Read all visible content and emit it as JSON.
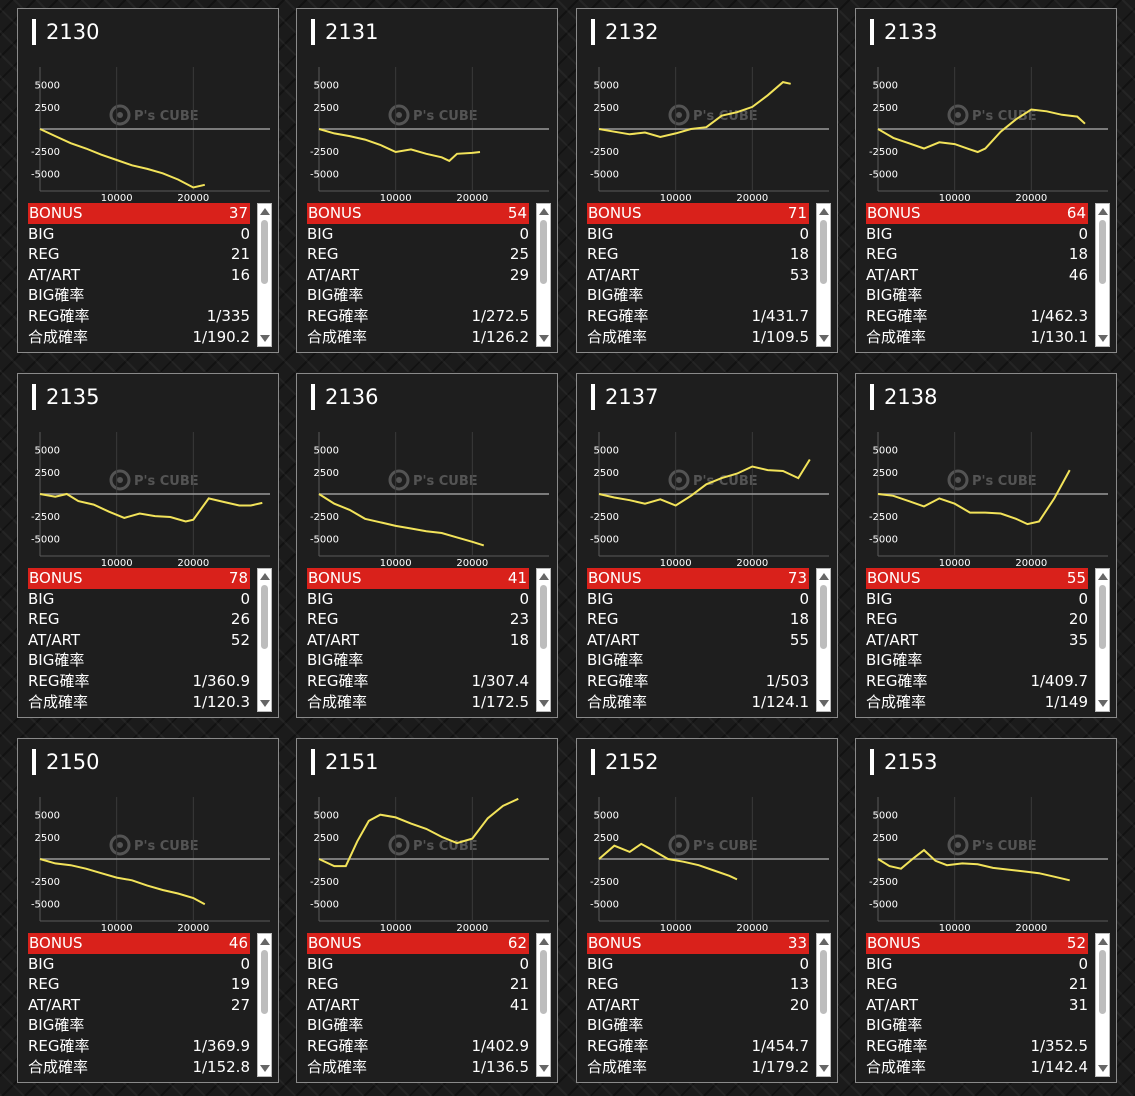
{
  "labels": {
    "bonus": "BONUS",
    "big": "BIG",
    "reg": "REG",
    "atart": "AT/ART",
    "big_rate": "BIG確率",
    "reg_rate": "REG確率",
    "combined_rate": "合成確率"
  },
  "chart_axis": {
    "y_ticks": [
      "5000",
      "2500",
      "-2500",
      "-5000"
    ],
    "x_ticks": [
      "10000",
      "20000"
    ],
    "watermark": "P's CUBE"
  },
  "colors": {
    "bonus_bar": "#d9211b",
    "line": "#f2e35a",
    "zero_line": "#9a9a9a"
  },
  "machines": [
    {
      "id": "2130",
      "bonus": "37",
      "big": "0",
      "reg": "21",
      "atart": "16",
      "big_rate": "",
      "reg_rate": "1/335",
      "combined_rate": "1/190.2",
      "chart_data": {
        "type": "line",
        "x": [
          0,
          2000,
          4000,
          6000,
          8000,
          10000,
          12000,
          14000,
          16000,
          18000,
          20000,
          21500
        ],
        "y": [
          0,
          -800,
          -1600,
          -2200,
          -2900,
          -3500,
          -4100,
          -4500,
          -5000,
          -5700,
          -6600,
          -6300
        ],
        "xlim": [
          0,
          30000
        ],
        "ylim": [
          -7000,
          7000
        ]
      }
    },
    {
      "id": "2131",
      "bonus": "54",
      "big": "0",
      "reg": "25",
      "atart": "29",
      "big_rate": "",
      "reg_rate": "1/272.5",
      "combined_rate": "1/126.2",
      "chart_data": {
        "type": "line",
        "x": [
          0,
          2000,
          4000,
          6000,
          8000,
          10000,
          12000,
          14000,
          16000,
          17000,
          18000,
          20000,
          21000
        ],
        "y": [
          0,
          -500,
          -800,
          -1200,
          -1800,
          -2600,
          -2300,
          -2800,
          -3200,
          -3600,
          -2800,
          -2700,
          -2600
        ],
        "xlim": [
          0,
          30000
        ],
        "ylim": [
          -7000,
          7000
        ]
      }
    },
    {
      "id": "2132",
      "bonus": "71",
      "big": "0",
      "reg": "18",
      "atart": "53",
      "big_rate": "",
      "reg_rate": "1/431.7",
      "combined_rate": "1/109.5",
      "chart_data": {
        "type": "line",
        "x": [
          0,
          2000,
          4000,
          6000,
          8000,
          10000,
          12000,
          14000,
          16000,
          18000,
          20000,
          22000,
          24000,
          25000
        ],
        "y": [
          0,
          -300,
          -600,
          -400,
          -900,
          -500,
          0,
          200,
          1500,
          1900,
          2500,
          3800,
          5300,
          5100
        ],
        "xlim": [
          0,
          30000
        ],
        "ylim": [
          -7000,
          7000
        ]
      }
    },
    {
      "id": "2133",
      "bonus": "64",
      "big": "0",
      "reg": "18",
      "atart": "46",
      "big_rate": "",
      "reg_rate": "1/462.3",
      "combined_rate": "1/130.1",
      "chart_data": {
        "type": "line",
        "x": [
          0,
          2000,
          4000,
          6000,
          8000,
          10000,
          12000,
          13000,
          14000,
          16000,
          18000,
          20000,
          22000,
          24000,
          26000,
          27000
        ],
        "y": [
          0,
          -1000,
          -1600,
          -2200,
          -1500,
          -1700,
          -2300,
          -2600,
          -2200,
          -300,
          1100,
          2200,
          2000,
          1600,
          1400,
          600
        ],
        "xlim": [
          0,
          30000
        ],
        "ylim": [
          -7000,
          7000
        ]
      }
    },
    {
      "id": "2135",
      "bonus": "78",
      "big": "0",
      "reg": "26",
      "atart": "52",
      "big_rate": "",
      "reg_rate": "1/360.9",
      "combined_rate": "1/120.3",
      "chart_data": {
        "type": "line",
        "x": [
          0,
          2000,
          3500,
          5000,
          7000,
          9000,
          11000,
          13000,
          15000,
          17000,
          19000,
          20000,
          22000,
          24000,
          26000,
          27500,
          29000
        ],
        "y": [
          0,
          -300,
          0,
          -800,
          -1200,
          -2000,
          -2700,
          -2200,
          -2500,
          -2600,
          -3100,
          -2900,
          -500,
          -900,
          -1300,
          -1300,
          -1000
        ],
        "xlim": [
          0,
          30000
        ],
        "ylim": [
          -7000,
          7000
        ]
      }
    },
    {
      "id": "2136",
      "bonus": "41",
      "big": "0",
      "reg": "23",
      "atart": "18",
      "big_rate": "",
      "reg_rate": "1/307.4",
      "combined_rate": "1/172.5",
      "chart_data": {
        "type": "line",
        "x": [
          0,
          2000,
          4000,
          6000,
          8000,
          10000,
          12000,
          14000,
          16000,
          18000,
          20000,
          21500
        ],
        "y": [
          0,
          -1100,
          -1800,
          -2800,
          -3200,
          -3600,
          -3900,
          -4200,
          -4400,
          -4900,
          -5400,
          -5800
        ],
        "xlim": [
          0,
          30000
        ],
        "ylim": [
          -7000,
          7000
        ]
      }
    },
    {
      "id": "2137",
      "bonus": "73",
      "big": "0",
      "reg": "18",
      "atart": "55",
      "big_rate": "",
      "reg_rate": "1/503",
      "combined_rate": "1/124.1",
      "chart_data": {
        "type": "line",
        "x": [
          0,
          2000,
          4000,
          6000,
          8000,
          10000,
          12000,
          14000,
          16000,
          18000,
          20000,
          22000,
          24000,
          26000,
          27500
        ],
        "y": [
          0,
          -400,
          -700,
          -1100,
          -600,
          -1300,
          -200,
          1100,
          1800,
          2300,
          3100,
          2700,
          2600,
          1800,
          3900
        ],
        "xlim": [
          0,
          30000
        ],
        "ylim": [
          -7000,
          7000
        ]
      }
    },
    {
      "id": "2138",
      "bonus": "55",
      "big": "0",
      "reg": "20",
      "atart": "35",
      "big_rate": "",
      "reg_rate": "1/409.7",
      "combined_rate": "1/149",
      "chart_data": {
        "type": "line",
        "x": [
          0,
          2000,
          4000,
          6000,
          8000,
          10000,
          12000,
          14000,
          16000,
          18000,
          19500,
          21000,
          23000,
          25000
        ],
        "y": [
          0,
          -200,
          -800,
          -1400,
          -500,
          -1100,
          -2100,
          -2100,
          -2200,
          -2800,
          -3400,
          -3100,
          -500,
          2700
        ],
        "xlim": [
          0,
          30000
        ],
        "ylim": [
          -7000,
          7000
        ]
      }
    },
    {
      "id": "2150",
      "bonus": "46",
      "big": "0",
      "reg": "19",
      "atart": "27",
      "big_rate": "",
      "reg_rate": "1/369.9",
      "combined_rate": "1/152.8",
      "chart_data": {
        "type": "line",
        "x": [
          0,
          2000,
          4000,
          6000,
          8000,
          10000,
          12000,
          14000,
          16000,
          18000,
          20000,
          21500
        ],
        "y": [
          0,
          -500,
          -700,
          -1100,
          -1600,
          -2100,
          -2400,
          -3000,
          -3500,
          -3900,
          -4400,
          -5100
        ],
        "xlim": [
          0,
          30000
        ],
        "ylim": [
          -7000,
          7000
        ]
      }
    },
    {
      "id": "2151",
      "bonus": "62",
      "big": "0",
      "reg": "21",
      "atart": "41",
      "big_rate": "",
      "reg_rate": "1/402.9",
      "combined_rate": "1/136.5",
      "chart_data": {
        "type": "line",
        "x": [
          0,
          2000,
          3500,
          5000,
          6500,
          8000,
          10000,
          12000,
          14000,
          16000,
          18000,
          20000,
          22000,
          24000,
          26000
        ],
        "y": [
          0,
          -800,
          -800,
          2000,
          4300,
          5000,
          4700,
          4000,
          3400,
          2500,
          1800,
          2300,
          4600,
          6000,
          6800
        ],
        "xlim": [
          0,
          30000
        ],
        "ylim": [
          -7000,
          7000
        ]
      }
    },
    {
      "id": "2152",
      "bonus": "33",
      "big": "0",
      "reg": "13",
      "atart": "20",
      "big_rate": "",
      "reg_rate": "1/454.7",
      "combined_rate": "1/179.2",
      "chart_data": {
        "type": "line",
        "x": [
          0,
          2000,
          4000,
          5500,
          7000,
          9000,
          11000,
          13000,
          15000,
          17000,
          18000
        ],
        "y": [
          0,
          1500,
          800,
          1700,
          1000,
          0,
          -300,
          -700,
          -1300,
          -1900,
          -2300
        ],
        "xlim": [
          0,
          30000
        ],
        "ylim": [
          -7000,
          7000
        ]
      }
    },
    {
      "id": "2153",
      "bonus": "52",
      "big": "0",
      "reg": "21",
      "atart": "31",
      "big_rate": "",
      "reg_rate": "1/352.5",
      "combined_rate": "1/142.4",
      "chart_data": {
        "type": "line",
        "x": [
          0,
          1500,
          3000,
          4500,
          6000,
          7500,
          9000,
          11000,
          13000,
          15000,
          17000,
          19000,
          21000,
          23000,
          25000
        ],
        "y": [
          0,
          -800,
          -1100,
          0,
          1000,
          -200,
          -700,
          -500,
          -600,
          -1000,
          -1200,
          -1400,
          -1600,
          -2000,
          -2400
        ],
        "xlim": [
          0,
          30000
        ],
        "ylim": [
          -7000,
          7000
        ]
      }
    }
  ]
}
